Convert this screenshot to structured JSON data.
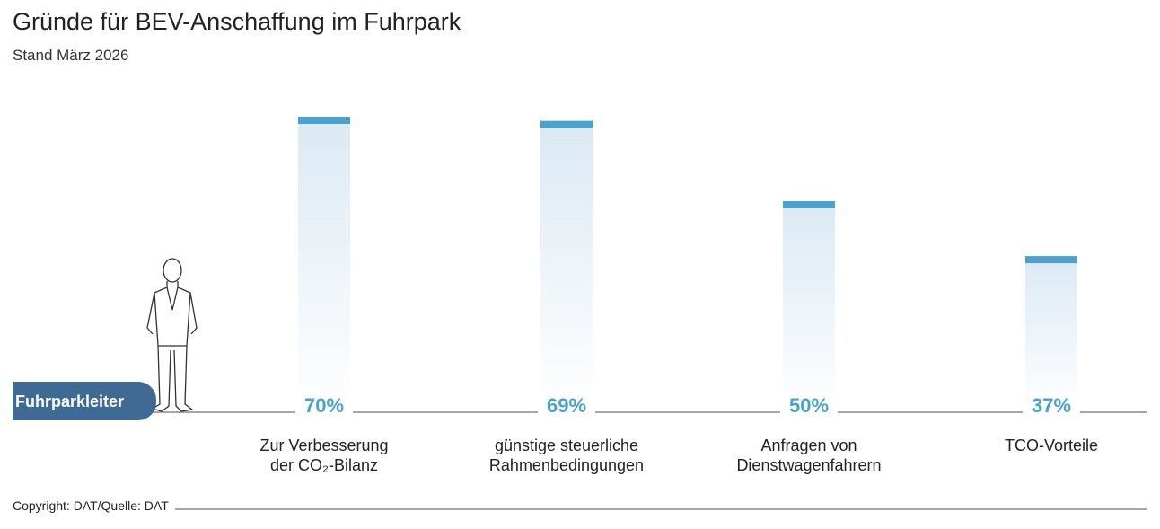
{
  "chart_data": {
    "type": "bar",
    "title": "Gründe für BEV-Anschaffung im Fuhrpark",
    "subtitle": "Stand März 2026",
    "group_label": "Fuhrparkleiter",
    "source": "Copyright: DAT/Quelle: DAT",
    "categories": [
      "Zur Verbesserung\nder CO₂-Bilanz",
      "günstige steuerliche\nRahmenbedingungen",
      "Anfragen von\nDienstwagenfahrern",
      "TCO-Vorteile"
    ],
    "values": [
      70,
      69,
      50,
      37
    ],
    "value_labels": [
      "70%",
      "69%",
      "50%",
      "37%"
    ],
    "color": "#4aa3cf"
  }
}
